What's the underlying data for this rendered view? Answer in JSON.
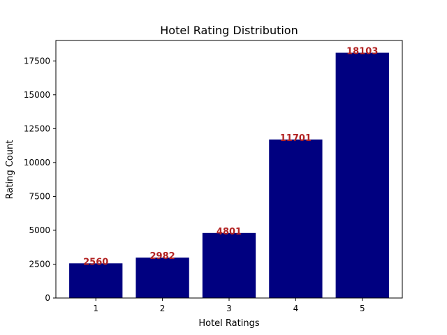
{
  "chart_data": {
    "type": "bar",
    "title": "Hotel Rating Distribution",
    "xlabel": "Hotel Ratings",
    "ylabel": "Rating Count",
    "categories": [
      "1",
      "2",
      "3",
      "4",
      "5"
    ],
    "values": [
      2560,
      2982,
      4801,
      11701,
      18103
    ],
    "data_labels": [
      "2560",
      "2982",
      "4801",
      "11701",
      "18103"
    ],
    "ylim": [
      0,
      19008
    ],
    "yticks": [
      0,
      2500,
      5000,
      7500,
      10000,
      12500,
      15000,
      17500
    ],
    "grid": false,
    "legend": "none",
    "bar_color": "#000080",
    "label_color": "#b22222"
  }
}
